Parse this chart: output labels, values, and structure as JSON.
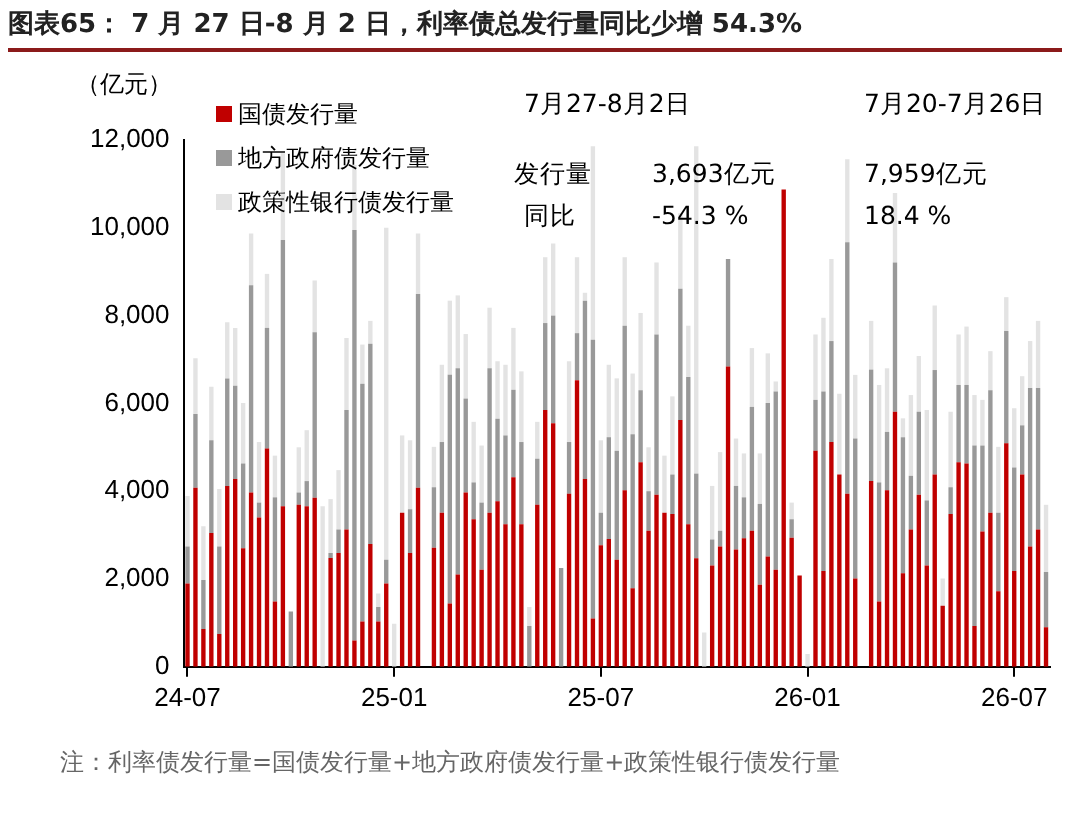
{
  "chart_data": {
    "type": "bar",
    "stacked": true,
    "title": "图表65：  7 月 27 日-8 月 2 日，利率债总发行量同比少增 54.3%",
    "ylabel": "（亿元）",
    "categories": [
      "24-07",
      null,
      null,
      null,
      null,
      null,
      null,
      null,
      null,
      null,
      null,
      null,
      null,
      null,
      null,
      null,
      null,
      null,
      null,
      null,
      null,
      null,
      null,
      null,
      null,
      null,
      "25-01",
      null,
      null,
      null,
      null,
      null,
      null,
      null,
      null,
      null,
      null,
      null,
      null,
      null,
      null,
      null,
      null,
      null,
      null,
      null,
      null,
      null,
      null,
      null,
      null,
      null,
      "25-07",
      null,
      null,
      null,
      null,
      null,
      null,
      null,
      null,
      null,
      null,
      null,
      null,
      null,
      null,
      null,
      null,
      null,
      null,
      null,
      null,
      null,
      null,
      null,
      null,
      null,
      "26-01",
      null,
      null,
      null,
      null,
      null,
      null,
      null,
      null,
      null,
      null,
      null,
      null,
      null,
      null,
      null,
      null,
      null,
      null,
      null,
      null,
      null,
      null,
      null,
      null,
      null,
      "26-07",
      null,
      null,
      null,
      null
    ],
    "series": [
      {
        "name": "国债发行量",
        "color": "#c00000",
        "values": [
          1900,
          4080,
          860,
          3050,
          750,
          4120,
          4280,
          2700,
          3970,
          3400,
          4970,
          1490,
          3660,
          0,
          3690,
          3660,
          3850,
          0,
          2480,
          2590,
          3130,
          600,
          1030,
          2800,
          1030,
          1900,
          0,
          3510,
          2590,
          4080,
          null,
          2710,
          3510,
          1440,
          2100,
          3970,
          3360,
          2210,
          3510,
          3770,
          3250,
          4320,
          3250,
          0,
          3690,
          5850,
          5550,
          0,
          3940,
          6530,
          4280,
          1100,
          2770,
          2910,
          2440,
          4020,
          1790,
          4660,
          3100,
          3920,
          3510,
          3480,
          5620,
          3250,
          2470,
          0,
          2310,
          2740,
          6840,
          2670,
          2930,
          3100,
          1870,
          2510,
          2210,
          10870,
          2940,
          2080,
          0,
          4920,
          2180,
          5120,
          4380,
          3940,
          2010,
          null,
          4230,
          1490,
          4020,
          5810,
          2130,
          3130,
          3920,
          2310,
          4380,
          1390,
          3480,
          4660,
          4630,
          930,
          3080,
          3510,
          1720,
          5090,
          2180,
          4380,
          2740,
          3130,
          900
        ]
      },
      {
        "name": "地方政府债发行量",
        "color": "#999999",
        "values": [
          840,
          1680,
          1120,
          2110,
          1990,
          2450,
          2120,
          1930,
          4720,
          340,
          2750,
          2370,
          6060,
          1260,
          280,
          570,
          3770,
          0,
          110,
          540,
          2720,
          9350,
          5420,
          4560,
          330,
          540,
          0,
          0,
          1000,
          4410,
          null,
          1380,
          1610,
          5210,
          4700,
          2140,
          840,
          1530,
          3290,
          1880,
          2020,
          1990,
          1870,
          930,
          1050,
          1980,
          2450,
          2250,
          1180,
          1070,
          4060,
          6350,
          740,
          2320,
          2480,
          3750,
          3510,
          1640,
          900,
          3650,
          0,
          900,
          2990,
          3350,
          1930,
          0,
          590,
          360,
          2450,
          1450,
          930,
          2820,
          1840,
          3500,
          4060,
          0,
          420,
          0,
          0,
          1160,
          4090,
          2300,
          0,
          5730,
          3190,
          null,
          2540,
          2710,
          1330,
          3400,
          3100,
          1220,
          1890,
          1480,
          2380,
          0,
          610,
          1760,
          1790,
          4110,
          1960,
          2790,
          1790,
          2560,
          2360,
          1120,
          3610,
          3220,
          1260
        ]
      },
      {
        "name": "政策性银行债发行量",
        "color": "#e3e3e3",
        "values": [
          1150,
          1270,
          1220,
          1220,
          1310,
          1280,
          1320,
          1380,
          1180,
          1380,
          1230,
          950,
          1980,
          0,
          1030,
          1160,
          1180,
          3660,
          1230,
          1350,
          1640,
          1480,
          890,
          520,
          310,
          7560,
          980,
          1760,
          1570,
          1380,
          null,
          920,
          1760,
          1690,
          1660,
          1470,
          1380,
          1300,
          1380,
          1310,
          1610,
          1410,
          1610,
          430,
          840,
          1500,
          1640,
          0,
          1840,
          1730,
          180,
          4410,
          1650,
          1650,
          1650,
          1560,
          1380,
          1760,
          1000,
          1640,
          1300,
          1780,
          1720,
          1170,
          7460,
          780,
          1220,
          1790,
          0,
          1080,
          1000,
          1340,
          1150,
          1130,
          230,
          0,
          380,
          0,
          290,
          1490,
          1680,
          1870,
          1840,
          1890,
          1450,
          null,
          1110,
          2220,
          1450,
          1580,
          430,
          1840,
          1270,
          2060,
          1470,
          620,
          1720,
          1150,
          1330,
          1150,
          1040,
          890,
          1500,
          770,
          1350,
          1120,
          1070,
          1530,
          1530
        ]
      }
    ],
    "ylim": [
      0,
      12000
    ],
    "yticks": [
      0,
      {
        "value": 2000,
        "label": "2,000"
      },
      {
        "value": 4000,
        "label": "4,000"
      },
      {
        "value": 6000,
        "label": "6,000"
      },
      {
        "value": 8000,
        "label": "8,000"
      },
      {
        "value": 10000,
        "label": "10,000"
      },
      {
        "value": 12000,
        "label": "12,000"
      }
    ],
    "legend": "top left",
    "annotations": [
      "7月27-8月2日",
      "7月20-7月26日",
      "发行量",
      "3,693亿元",
      "7,959亿元",
      "同比",
      "-54.3 %",
      "18.4 %",
      "注：利率债发行量=国债发行量+地方政府债发行量+政策性银行债发行量"
    ]
  }
}
